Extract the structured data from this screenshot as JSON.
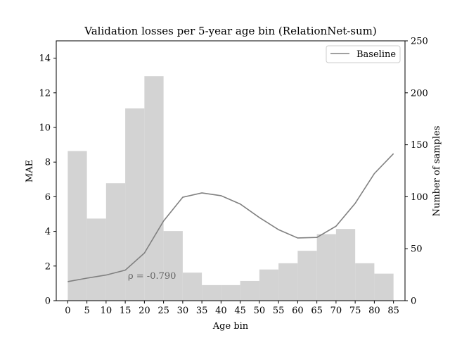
{
  "chart_data": {
    "type": "bar",
    "title": "Validation losses per 5-year age bin (RelationNet-sum)",
    "xlabel": "Age bin",
    "ylabel_left": "MAE",
    "ylabel_right": "Number of samples",
    "xlim": [
      -3,
      88
    ],
    "ylim_left": [
      0,
      15
    ],
    "ylim_right": [
      0,
      250
    ],
    "x_ticks": [
      0,
      5,
      10,
      15,
      20,
      25,
      30,
      35,
      40,
      45,
      50,
      55,
      60,
      65,
      70,
      75,
      80,
      85
    ],
    "y_left_ticks": [
      0,
      2,
      4,
      6,
      8,
      10,
      12,
      14
    ],
    "y_right_ticks": [
      0,
      50,
      100,
      150,
      200,
      250
    ],
    "bin_width": 5,
    "bar_color": "#d3d3d3",
    "sample_counts": {
      "bin_starts": [
        0,
        5,
        10,
        15,
        20,
        25,
        30,
        35,
        40,
        45,
        50,
        55,
        60,
        65,
        70,
        75,
        80
      ],
      "values": [
        144,
        79,
        113,
        185,
        216,
        67,
        27,
        15,
        15,
        19,
        30,
        36,
        48,
        64,
        69,
        36,
        26
      ]
    },
    "series": [
      {
        "name": "Baseline",
        "color": "#808080",
        "x": [
          0,
          5,
          10,
          15,
          20,
          25,
          30,
          35,
          40,
          45,
          50,
          55,
          60,
          65,
          70,
          75,
          80,
          85
        ],
        "values": [
          1.1,
          1.3,
          1.48,
          1.76,
          2.75,
          4.6,
          5.97,
          6.22,
          6.06,
          5.58,
          4.8,
          4.1,
          3.62,
          3.65,
          4.3,
          5.62,
          7.34,
          8.49
        ]
      }
    ],
    "annotation": "ρ = -0.790",
    "legend_position": "upper right",
    "grid": false
  }
}
